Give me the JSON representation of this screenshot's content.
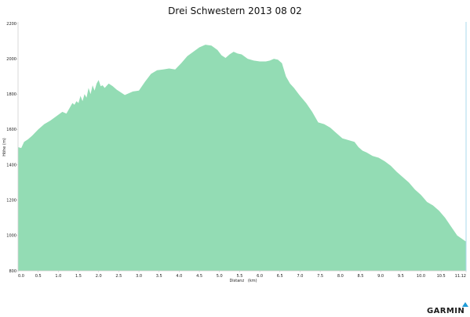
{
  "chart_data": {
    "type": "area",
    "title": "Drei Schwestern 2013 08 02",
    "xlabel": "Distanz   (km)",
    "ylabel": "Höhe (m)",
    "xlim": [
      0,
      11.12
    ],
    "ylim": [
      800,
      2200
    ],
    "xticks": [
      "0.0",
      "0.5",
      "1.0",
      "1.5",
      "2.0",
      "2.5",
      "3.0",
      "3.5",
      "4.0",
      "4.5",
      "5.0",
      "5.5",
      "6.0",
      "6.5",
      "7.0",
      "7.5",
      "8.0",
      "8.5",
      "9.0",
      "9.5",
      "10.0",
      "10.5",
      "11.12"
    ],
    "yticks": [
      "800",
      "1000",
      "1200",
      "1400",
      "1600",
      "1800",
      "2000",
      "2200"
    ],
    "fill_color": "#93dcb4",
    "grid": false,
    "series": [
      {
        "x": [
          0.0,
          0.08,
          0.15,
          0.25,
          0.35,
          0.5,
          0.65,
          0.8,
          0.95,
          1.1,
          1.2,
          1.3,
          1.35,
          1.4,
          1.45,
          1.5,
          1.55,
          1.6,
          1.65,
          1.7,
          1.75,
          1.8,
          1.85,
          1.9,
          1.95,
          2.0,
          2.05,
          2.1,
          2.15,
          2.25,
          2.35,
          2.45,
          2.55,
          2.65,
          2.75,
          2.85,
          3.0,
          3.15,
          3.3,
          3.45,
          3.6,
          3.75,
          3.9,
          4.05,
          4.2,
          4.35,
          4.5,
          4.65,
          4.8,
          4.95,
          5.05,
          5.15,
          5.25,
          5.35,
          5.45,
          5.55,
          5.7,
          5.85,
          6.0,
          6.15,
          6.25,
          6.35,
          6.45,
          6.55,
          6.65,
          6.75,
          6.85,
          7.0,
          7.15,
          7.3,
          7.45,
          7.6,
          7.75,
          7.9,
          8.05,
          8.2,
          8.35,
          8.45,
          8.55,
          8.65,
          8.8,
          8.95,
          9.1,
          9.25,
          9.4,
          9.55,
          9.7,
          9.85,
          10.0,
          10.15,
          10.3,
          10.45,
          10.6,
          10.75,
          10.9,
          11.12
        ],
        "values": [
          1500,
          1495,
          1530,
          1545,
          1565,
          1600,
          1630,
          1650,
          1675,
          1700,
          1690,
          1730,
          1750,
          1740,
          1760,
          1750,
          1790,
          1760,
          1800,
          1780,
          1835,
          1800,
          1850,
          1820,
          1860,
          1880,
          1845,
          1850,
          1835,
          1860,
          1845,
          1825,
          1810,
          1795,
          1805,
          1815,
          1820,
          1870,
          1915,
          1935,
          1940,
          1945,
          1940,
          1975,
          2015,
          2040,
          2065,
          2080,
          2075,
          2050,
          2020,
          2005,
          2025,
          2040,
          2030,
          2025,
          2000,
          1990,
          1985,
          1985,
          1990,
          2000,
          1995,
          1975,
          1900,
          1860,
          1835,
          1790,
          1750,
          1700,
          1640,
          1630,
          1610,
          1580,
          1550,
          1540,
          1530,
          1500,
          1480,
          1470,
          1450,
          1440,
          1420,
          1395,
          1360,
          1330,
          1300,
          1260,
          1230,
          1190,
          1170,
          1140,
          1100,
          1050,
          1000,
          965
        ]
      }
    ]
  },
  "brand": {
    "logo_text": "GARMIN",
    "logo_color": "#1e9bd7"
  }
}
